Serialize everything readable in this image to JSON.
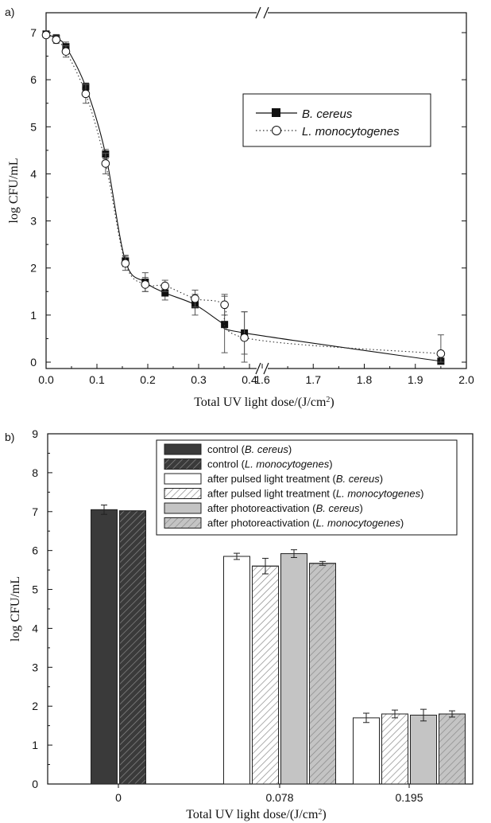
{
  "colors": {
    "axis": "#111111",
    "bc_line": "#111111",
    "lm_line": "#333333",
    "control_fill": "#3a3a3a",
    "treatment_fill": "#ffffff",
    "photo_fill": "#c4c4c4",
    "hatch": "#888888"
  },
  "chart_data": [
    {
      "type": "line",
      "panel_label": "a)",
      "xlabel_main": "Total UV light dose/(J/cm",
      "xlabel_sup": "2",
      "xlabel_end": ")",
      "ylabel": "log CFU/mL",
      "axis_break": "//",
      "ylim": [
        0,
        7.3
      ],
      "yticks": [
        "0",
        "1",
        "2",
        "3",
        "4",
        "5",
        "6",
        "7"
      ],
      "xticks_left": [
        "0.0",
        "0.1",
        "0.2",
        "0.3",
        "0.4"
      ],
      "xticks_right": [
        "1.6",
        "1.7",
        "1.8",
        "1.9",
        "2.0"
      ],
      "broken_x_axis": true,
      "x_segments": [
        [
          0.0,
          0.425
        ],
        [
          1.6,
          2.0
        ]
      ],
      "legend_position": "top-right",
      "series": [
        {
          "name": "B. cereus",
          "marker": "filled-square",
          "line": "solid",
          "x": [
            0.0,
            0.02,
            0.039,
            0.078,
            0.117,
            0.156,
            0.195,
            0.234,
            0.293,
            0.351,
            0.39,
            1.95
          ],
          "y": [
            6.97,
            6.88,
            6.7,
            5.85,
            4.42,
            2.15,
            1.7,
            1.47,
            1.22,
            0.8,
            0.62,
            0.02
          ],
          "err": [
            0.05,
            0.08,
            0.1,
            0.08,
            0.1,
            0.12,
            0.2,
            0.15,
            0.22,
            0.6,
            0.45,
            0.05
          ]
        },
        {
          "name": "L. monocytogenes",
          "marker": "open-circle",
          "line": "dotted",
          "x": [
            0.0,
            0.02,
            0.039,
            0.078,
            0.117,
            0.156,
            0.195,
            0.234,
            0.293,
            0.351,
            0.39,
            1.95
          ],
          "y": [
            6.95,
            6.85,
            6.6,
            5.7,
            4.22,
            2.1,
            1.65,
            1.62,
            1.35,
            1.22,
            0.52,
            0.18
          ],
          "err": [
            0.05,
            0.08,
            0.12,
            0.2,
            0.22,
            0.15,
            0.15,
            0.12,
            0.18,
            0.22,
            0.55,
            0.4
          ]
        }
      ]
    },
    {
      "type": "bar",
      "panel_label": "b)",
      "xlabel_main": "Total UV light dose/(J/cm",
      "xlabel_sup": "2",
      "xlabel_end": ")",
      "ylabel": "log CFU/mL",
      "ylim": [
        0,
        9
      ],
      "yticks": [
        "0",
        "1",
        "2",
        "3",
        "4",
        "5",
        "6",
        "7",
        "8",
        "9"
      ],
      "categories": [
        "0",
        "0.078",
        "0.195"
      ],
      "legend_position": "top-right",
      "legend": [
        {
          "text": "control (",
          "italic": "B. cereus",
          "end": ")",
          "fill": "dark",
          "hatch": false
        },
        {
          "text": "control (",
          "italic": "L. monocytogenes",
          "end": ")",
          "fill": "dark",
          "hatch": true
        },
        {
          "text": "after pulsed light treatment (",
          "italic": "B. cereus",
          "end": ")",
          "fill": "white",
          "hatch": false
        },
        {
          "text": "after pulsed light treatment (",
          "italic": "L. monocytogenes",
          "end": ")",
          "fill": "white",
          "hatch": true
        },
        {
          "text": "after photoreactivation (",
          "italic": "B. cereus",
          "end": ")",
          "fill": "gray",
          "hatch": false
        },
        {
          "text": "after photoreactivation (",
          "italic": "L. monocytogenes",
          "end": ")",
          "fill": "gray",
          "hatch": true
        }
      ],
      "groups": [
        {
          "category": "0",
          "bars": [
            {
              "series": "control (B. cereus)",
              "fill": "dark",
              "hatch": false,
              "value": 7.05,
              "err": 0.12
            },
            {
              "series": "control (L. monocytogenes)",
              "fill": "dark",
              "hatch": true,
              "value": 7.02,
              "err": 0.0
            }
          ]
        },
        {
          "category": "0.078",
          "bars": [
            {
              "series": "after pulsed light treatment (B. cereus)",
              "fill": "white",
              "hatch": false,
              "value": 5.85,
              "err": 0.08
            },
            {
              "series": "after pulsed light treatment (L. monocytogenes)",
              "fill": "white",
              "hatch": true,
              "value": 5.6,
              "err": 0.2
            },
            {
              "series": "after photoreactivation (B. cereus)",
              "fill": "gray",
              "hatch": false,
              "value": 5.92,
              "err": 0.1
            },
            {
              "series": "after photoreactivation (L. monocytogenes)",
              "fill": "gray",
              "hatch": true,
              "value": 5.67,
              "err": 0.05
            }
          ]
        },
        {
          "category": "0.195",
          "bars": [
            {
              "series": "after pulsed light treatment (B. cereus)",
              "fill": "white",
              "hatch": false,
              "value": 1.7,
              "err": 0.12
            },
            {
              "series": "after pulsed light treatment (L. monocytogenes)",
              "fill": "white",
              "hatch": true,
              "value": 1.8,
              "err": 0.1
            },
            {
              "series": "after photoreactivation (B. cereus)",
              "fill": "gray",
              "hatch": false,
              "value": 1.77,
              "err": 0.15
            },
            {
              "series": "after photoreactivation (L. monocytogenes)",
              "fill": "gray",
              "hatch": true,
              "value": 1.8,
              "err": 0.08
            }
          ]
        }
      ]
    }
  ]
}
